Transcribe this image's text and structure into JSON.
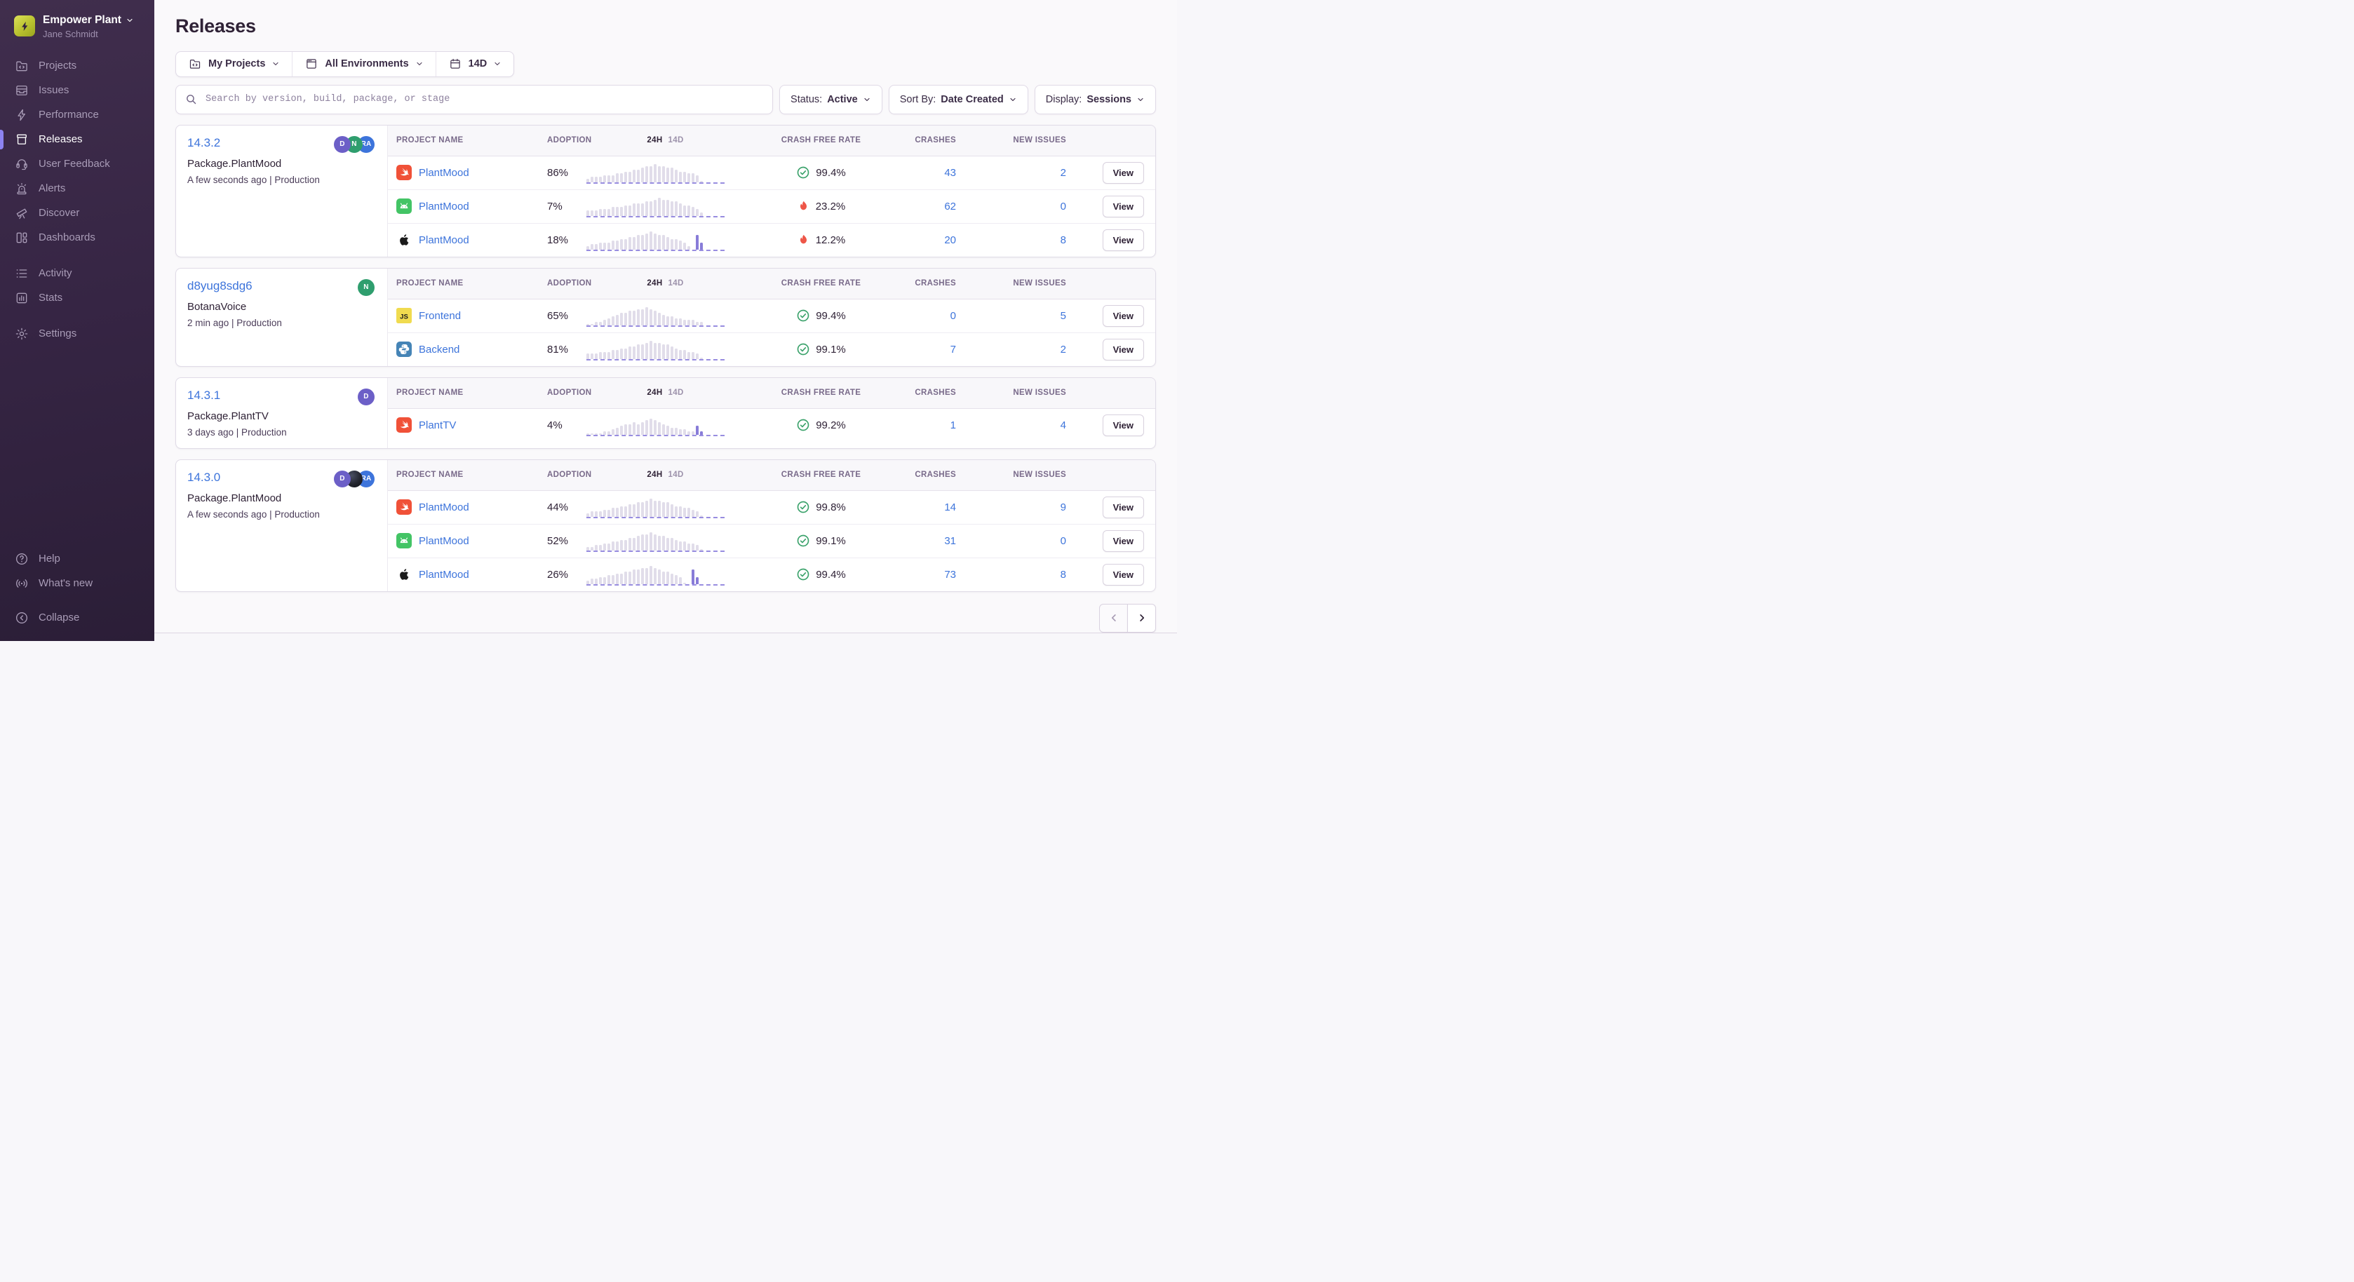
{
  "colors": {
    "accent_purple": "#8d83f1",
    "link_blue": "#3d74db",
    "success_green": "#3ba26b",
    "danger_red": "#ee5648",
    "spark_bar": "#e1ddea",
    "spark_bar_accent": "#887cd8"
  },
  "sidebar": {
    "org_name": "Empower Plant",
    "user_name": "Jane Schmidt",
    "main_items": [
      {
        "id": "projects",
        "label": "Projects",
        "active": false
      },
      {
        "id": "issues",
        "label": "Issues",
        "active": false
      },
      {
        "id": "performance",
        "label": "Performance",
        "active": false
      },
      {
        "id": "releases",
        "label": "Releases",
        "active": true
      },
      {
        "id": "user-feedback",
        "label": "User Feedback",
        "active": false
      },
      {
        "id": "alerts",
        "label": "Alerts",
        "active": false
      },
      {
        "id": "discover",
        "label": "Discover",
        "active": false
      },
      {
        "id": "dashboards",
        "label": "Dashboards",
        "active": false
      }
    ],
    "secondary_items": [
      {
        "id": "activity",
        "label": "Activity",
        "active": false
      },
      {
        "id": "stats",
        "label": "Stats",
        "active": false
      }
    ],
    "settings_items": [
      {
        "id": "settings",
        "label": "Settings",
        "active": false
      }
    ],
    "footer_items": [
      {
        "id": "help",
        "label": "Help",
        "active": false
      },
      {
        "id": "whats-new",
        "label": "What's new",
        "active": false
      }
    ],
    "collapse_label": "Collapse"
  },
  "header": {
    "title": "Releases"
  },
  "filters": {
    "segments": [
      {
        "id": "project-filter",
        "icon": "projects",
        "label": "My Projects"
      },
      {
        "id": "environment-filter",
        "icon": "window",
        "label": "All Environments"
      },
      {
        "id": "date-range-filter",
        "icon": "calendar",
        "label": "14D"
      }
    ]
  },
  "search": {
    "placeholder": "Search by version, build, package, or stage"
  },
  "controls": [
    {
      "id": "status",
      "label": "Status:",
      "value": "Active"
    },
    {
      "id": "sort-by",
      "label": "Sort By:",
      "value": "Date Created"
    },
    {
      "id": "display",
      "label": "Display:",
      "value": "Sessions"
    }
  ],
  "table": {
    "headers": {
      "project": "PROJECT NAME",
      "adoption": "ADOPTION",
      "range_24h": "24H",
      "range_14d": "14D",
      "crash_free": "CRASH FREE RATE",
      "crashes": "CRASHES",
      "new_issues": "NEW ISSUES"
    },
    "view_label": "View"
  },
  "releases": [
    {
      "version": "14.3.2",
      "package": "Package.PlantMood",
      "meta": "A few seconds ago | Production",
      "avatars": [
        {
          "type": "initials",
          "text": "D",
          "color": "#6c5fc7"
        },
        {
          "type": "initials",
          "text": "N",
          "color": "#2f9e6e"
        },
        {
          "type": "initials",
          "text": "RA",
          "color": "#3d74db"
        }
      ],
      "projects": [
        {
          "platform": "swift",
          "name": "PlantMood",
          "adoption": "86%",
          "health": "good",
          "crash_free": "99.4%",
          "crashes": "43",
          "new_issues": "2",
          "spark": [
            2,
            3,
            3,
            3,
            4,
            4,
            4,
            5,
            5,
            6,
            6,
            7,
            7,
            8,
            9,
            9,
            10,
            9,
            9,
            8,
            8,
            7,
            6,
            6,
            5,
            5,
            4,
            1
          ],
          "accent_last": 0
        },
        {
          "platform": "android",
          "name": "PlantMood",
          "adoption": "7%",
          "health": "bad",
          "crash_free": "23.2%",
          "crashes": "62",
          "new_issues": "0",
          "spark": [
            3,
            3,
            3,
            4,
            4,
            4,
            5,
            5,
            5,
            6,
            6,
            7,
            7,
            7,
            8,
            8,
            9,
            10,
            9,
            9,
            8,
            8,
            7,
            6,
            6,
            5,
            4,
            2
          ],
          "accent_last": 0
        },
        {
          "platform": "apple",
          "name": "PlantMood",
          "adoption": "18%",
          "health": "bad",
          "crash_free": "12.2%",
          "crashes": "20",
          "new_issues": "8",
          "spark": [
            2,
            3,
            3,
            4,
            4,
            4,
            5,
            5,
            6,
            6,
            7,
            7,
            8,
            8,
            9,
            10,
            9,
            8,
            8,
            7,
            6,
            6,
            5,
            4,
            2,
            0,
            8,
            4
          ],
          "accent_last": 2
        }
      ]
    },
    {
      "version": "d8yug8sdg6",
      "package": "BotanaVoice",
      "meta": "2 min ago | Production",
      "avatars": [
        {
          "type": "initials",
          "text": "N",
          "color": "#2f9e6e"
        }
      ],
      "projects": [
        {
          "platform": "javascript",
          "name": "Frontend",
          "adoption": "65%",
          "health": "good",
          "crash_free": "99.4%",
          "crashes": "0",
          "new_issues": "5",
          "spark": [
            1,
            1,
            2,
            2,
            3,
            4,
            5,
            6,
            7,
            7,
            8,
            8,
            9,
            9,
            10,
            9,
            8,
            7,
            6,
            5,
            5,
            4,
            4,
            3,
            3,
            3,
            2,
            2
          ],
          "accent_last": 0
        },
        {
          "platform": "python",
          "name": "Backend",
          "adoption": "81%",
          "health": "good",
          "crash_free": "99.1%",
          "crashes": "7",
          "new_issues": "2",
          "spark": [
            3,
            3,
            3,
            4,
            4,
            4,
            5,
            5,
            6,
            6,
            7,
            7,
            8,
            8,
            9,
            10,
            9,
            9,
            8,
            8,
            7,
            6,
            5,
            5,
            4,
            4,
            3,
            1
          ],
          "accent_last": 0
        }
      ]
    },
    {
      "version": "14.3.1",
      "package": "Package.PlantTV",
      "meta": "3 days ago | Production",
      "avatars": [
        {
          "type": "initials",
          "text": "D",
          "color": "#6c5fc7"
        }
      ],
      "projects": [
        {
          "platform": "swift",
          "name": "PlantTV",
          "adoption": "4%",
          "health": "good",
          "crash_free": "99.2%",
          "crashes": "1",
          "new_issues": "4",
          "spark": [
            1,
            1,
            1,
            1,
            2,
            2,
            3,
            4,
            5,
            6,
            6,
            7,
            6,
            7,
            8,
            9,
            8,
            7,
            6,
            5,
            4,
            4,
            3,
            3,
            2,
            2,
            5,
            2
          ],
          "accent_last": 2
        }
      ]
    },
    {
      "version": "14.3.0",
      "package": "Package.PlantMood",
      "meta": "A few seconds ago | Production",
      "avatars": [
        {
          "type": "initials",
          "text": "D",
          "color": "#6c5fc7"
        },
        {
          "type": "photo",
          "text": "",
          "color": "#1d1f27"
        },
        {
          "type": "initials",
          "text": "RA",
          "color": "#3d74db"
        }
      ],
      "projects": [
        {
          "platform": "swift",
          "name": "PlantMood",
          "adoption": "44%",
          "health": "good",
          "crash_free": "99.8%",
          "crashes": "14",
          "new_issues": "9",
          "spark": [
            2,
            3,
            3,
            3,
            4,
            4,
            5,
            5,
            6,
            6,
            7,
            7,
            8,
            8,
            9,
            10,
            9,
            9,
            8,
            8,
            7,
            6,
            6,
            5,
            5,
            4,
            3,
            1
          ],
          "accent_last": 0
        },
        {
          "platform": "android",
          "name": "PlantMood",
          "adoption": "52%",
          "health": "good",
          "crash_free": "99.1%",
          "crashes": "31",
          "new_issues": "0",
          "spark": [
            2,
            2,
            3,
            3,
            4,
            4,
            5,
            5,
            6,
            6,
            7,
            7,
            8,
            9,
            9,
            10,
            9,
            8,
            8,
            7,
            7,
            6,
            5,
            5,
            4,
            4,
            3,
            1
          ],
          "accent_last": 0
        },
        {
          "platform": "apple",
          "name": "PlantMood",
          "adoption": "26%",
          "health": "good",
          "crash_free": "99.4%",
          "crashes": "73",
          "new_issues": "8",
          "spark": [
            2,
            3,
            3,
            4,
            4,
            5,
            5,
            6,
            6,
            7,
            7,
            8,
            8,
            9,
            9,
            10,
            9,
            8,
            7,
            7,
            6,
            5,
            4,
            1,
            0,
            8,
            4,
            0
          ],
          "accent_last": 3
        }
      ]
    }
  ],
  "pagination": {
    "prev_enabled": false,
    "next_enabled": true
  }
}
